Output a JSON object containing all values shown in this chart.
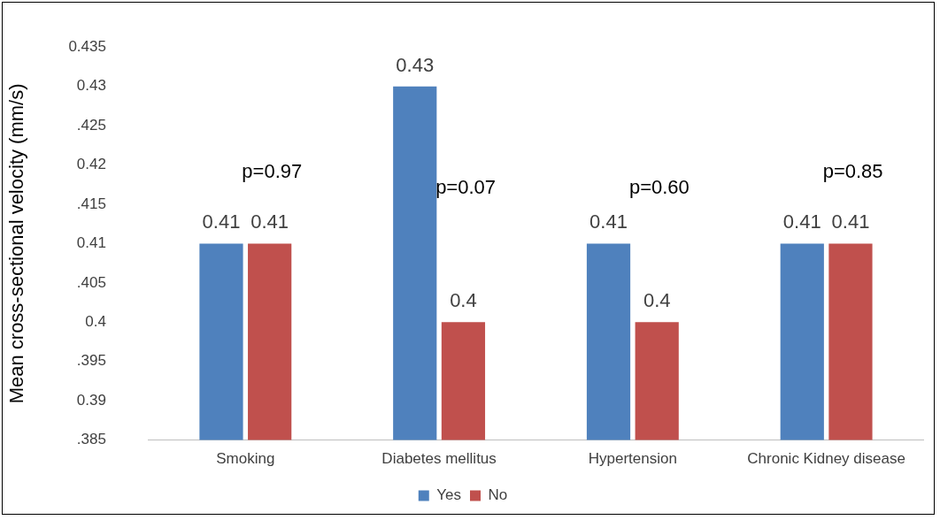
{
  "chart_data": {
    "type": "bar",
    "ylabel": "Mean cross-sectional velocity (mm/s)",
    "categories": [
      "Smoking",
      "Diabetes mellitus",
      "Hypertension",
      "Chronic Kidney disease"
    ],
    "series": [
      {
        "name": "Yes",
        "color": "#4f81bd",
        "values": [
          0.41,
          0.43,
          0.41,
          0.41
        ]
      },
      {
        "name": "No",
        "color": "#c0504d",
        "values": [
          0.41,
          0.4,
          0.4,
          0.41
        ]
      }
    ],
    "ylim": [
      0.385,
      0.435
    ],
    "yticks": [
      {
        "value": 0.385,
        "label": ".385"
      },
      0.39,
      {
        "value": 0.395,
        "label": ".395"
      },
      0.4,
      {
        "value": 0.405,
        "label": ".405"
      },
      0.41,
      {
        "value": 0.415,
        "label": ".415"
      },
      0.42,
      {
        "value": 0.425,
        "label": ".425"
      },
      0.43,
      0.435
    ],
    "grid": false,
    "legend": "bottom",
    "data_labels": true,
    "annotations": [
      "p=0.97",
      "p=0.07",
      "p=0.60",
      "p=0.85"
    ]
  }
}
